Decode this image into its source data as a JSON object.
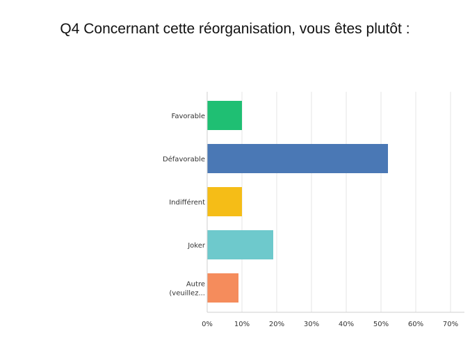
{
  "chart_data": {
    "type": "bar",
    "orientation": "horizontal",
    "title": "Q4 Concernant cette réorganisation, vous êtes plutôt :",
    "categories": [
      [
        "Favorable"
      ],
      [
        "Défavorable"
      ],
      [
        "Indifférent"
      ],
      [
        "Joker"
      ],
      [
        "Autre",
        "(veuillez..."
      ]
    ],
    "values": [
      10,
      52,
      10,
      19,
      9
    ],
    "colors": [
      "#1fbf73",
      "#4a78b5",
      "#f5bd17",
      "#6ec9cc",
      "#f58c5c"
    ],
    "xlim": [
      0,
      70
    ],
    "x_ticks": [
      "0%",
      "10%",
      "20%",
      "30%",
      "40%",
      "50%",
      "60%",
      "70%"
    ],
    "grid": true,
    "xlabel": "",
    "ylabel": ""
  }
}
